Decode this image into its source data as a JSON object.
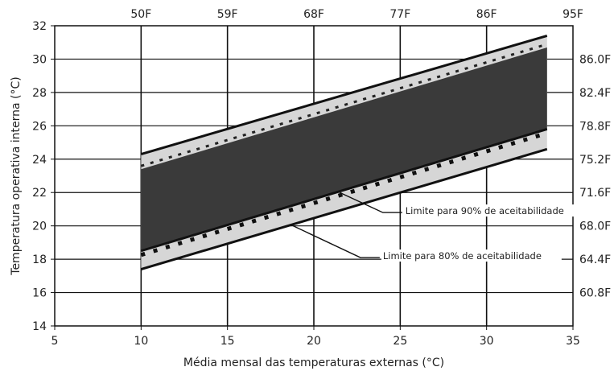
{
  "chart_data": {
    "type": "area",
    "title": "",
    "xlabel": "Média mensal das temperaturas externas (°C)",
    "ylabel": "Temperatura operativa interna (°C)",
    "xlim": [
      5,
      35
    ],
    "ylim": [
      14,
      32
    ],
    "x_ticks": [
      "5",
      "10",
      "15",
      "20",
      "25",
      "30",
      "35"
    ],
    "y_ticks": [
      "14",
      "16",
      "18",
      "20",
      "22",
      "24",
      "26",
      "28",
      "30",
      "32"
    ],
    "top_axis_ticks": [
      {
        "x": 10,
        "label": "50F"
      },
      {
        "x": 15,
        "label": "59F"
      },
      {
        "x": 20,
        "label": "68F"
      },
      {
        "x": 25,
        "label": "77F"
      },
      {
        "x": 30,
        "label": "86F"
      },
      {
        "x": 35,
        "label": "95F"
      }
    ],
    "right_axis_ticks": [
      {
        "y": 16.0,
        "label": "60.8F"
      },
      {
        "y": 18.0,
        "label": "64.4F"
      },
      {
        "y": 20.0,
        "label": "68.0F"
      },
      {
        "y": 22.0,
        "label": "71.6F"
      },
      {
        "y": 24.0,
        "label": "75.2F"
      },
      {
        "y": 26.0,
        "label": "78.8F"
      },
      {
        "y": 28.0,
        "label": "82.4F"
      },
      {
        "y": 30.0,
        "label": "86.0F"
      }
    ],
    "grid": true,
    "series": [
      {
        "x": [
          10,
          33.5
        ],
        "upper": [
          24.3,
          31.4
        ],
        "lower": [
          17.4,
          24.6
        ]
      },
      {
        "x": [
          10,
          33.5
        ],
        "upper": [
          23.4,
          30.7
        ],
        "lower": [
          18.5,
          25.8
        ]
      }
    ],
    "annotations": [
      {
        "text": "Limite para 90% de aceitabilidade",
        "target": {
          "x": 21.5,
          "y": 22.0
        },
        "label_at": {
          "x": 25.3,
          "y": 20.8
        }
      },
      {
        "text": "Limite para 80% de aceitabilidade",
        "target": {
          "x": 18.8,
          "y": 20.0
        },
        "label_at": {
          "x": 24.0,
          "y": 18.1
        }
      }
    ],
    "colors": {
      "inner_band": "#3a3a3a",
      "outer_band": "#d6d6d6",
      "lines": "#111111",
      "grid": "#111111"
    }
  }
}
